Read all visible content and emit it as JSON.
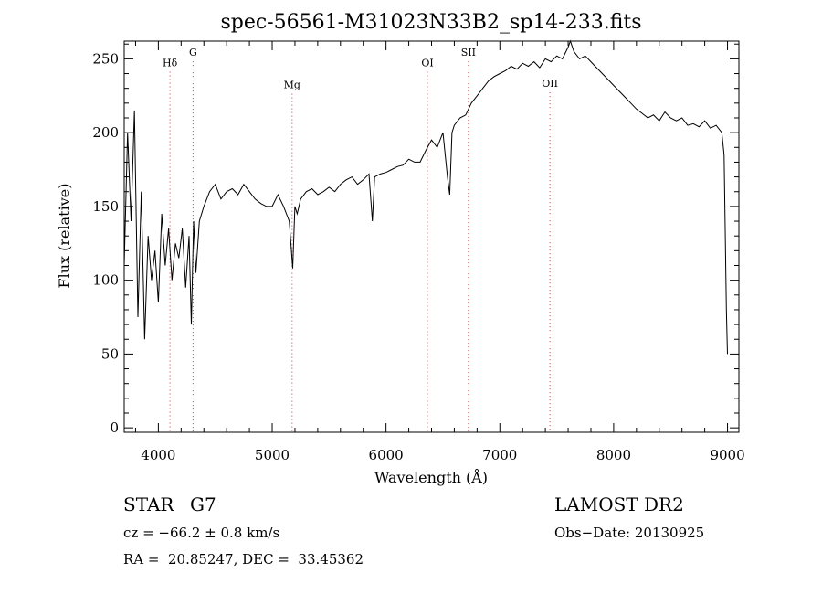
{
  "chart_data": {
    "type": "line",
    "title": "spec-56561-M31023N33B2_sp14-233.fits",
    "xlabel": "Wavelength (Å)",
    "ylabel": "Flux (relative)",
    "xlim": [
      3700,
      9100
    ],
    "ylim": [
      -3,
      262
    ],
    "x_ticks": [
      4000,
      5000,
      6000,
      7000,
      8000,
      9000
    ],
    "y_ticks": [
      0,
      50,
      100,
      150,
      200,
      250
    ],
    "grid": false,
    "line_color": "#000000",
    "marker_color": "#cc3333",
    "series": [
      {
        "x": [
          3700,
          3730,
          3760,
          3790,
          3820,
          3850,
          3880,
          3910,
          3940,
          3970,
          4000,
          4030,
          4060,
          4090,
          4120,
          4150,
          4180,
          4210,
          4240,
          4270,
          4290,
          4310,
          4330,
          4360,
          4400,
          4450,
          4500,
          4550,
          4600,
          4650,
          4700,
          4750,
          4800,
          4850,
          4900,
          4950,
          5000,
          5050,
          5100,
          5150,
          5180,
          5200,
          5220,
          5250,
          5300,
          5350,
          5400,
          5450,
          5500,
          5550,
          5600,
          5650,
          5700,
          5750,
          5800,
          5850,
          5880,
          5900,
          5950,
          6000,
          6050,
          6100,
          6150,
          6200,
          6250,
          6300,
          6350,
          6400,
          6450,
          6500,
          6540,
          6560,
          6580,
          6600,
          6650,
          6700,
          6750,
          6800,
          6850,
          6900,
          6950,
          7000,
          7050,
          7100,
          7150,
          7200,
          7250,
          7300,
          7350,
          7400,
          7450,
          7500,
          7550,
          7600,
          7620,
          7650,
          7700,
          7750,
          7800,
          7850,
          7900,
          7950,
          8000,
          8050,
          8100,
          8150,
          8200,
          8250,
          8300,
          8350,
          8400,
          8450,
          8500,
          8550,
          8600,
          8650,
          8700,
          8750,
          8800,
          8850,
          8900,
          8950,
          8970,
          8990,
          9000
        ],
        "y": [
          110,
          200,
          140,
          215,
          75,
          160,
          60,
          130,
          100,
          120,
          85,
          145,
          110,
          135,
          100,
          125,
          115,
          135,
          95,
          130,
          70,
          140,
          105,
          140,
          150,
          160,
          165,
          155,
          160,
          162,
          158,
          165,
          160,
          155,
          152,
          150,
          150,
          158,
          150,
          140,
          108,
          150,
          145,
          155,
          160,
          162,
          158,
          160,
          163,
          160,
          165,
          168,
          170,
          165,
          168,
          172,
          140,
          170,
          172,
          173,
          175,
          177,
          178,
          182,
          180,
          180,
          188,
          195,
          190,
          200,
          170,
          158,
          200,
          205,
          210,
          212,
          220,
          225,
          230,
          235,
          238,
          240,
          242,
          245,
          243,
          247,
          245,
          248,
          244,
          250,
          248,
          252,
          250,
          258,
          262,
          255,
          250,
          252,
          248,
          244,
          240,
          236,
          232,
          228,
          224,
          220,
          216,
          213,
          210,
          212,
          208,
          214,
          210,
          208,
          210,
          205,
          206,
          204,
          208,
          203,
          205,
          200,
          185,
          80,
          50
        ]
      }
    ],
    "spectral_lines": [
      {
        "label": "Hδ",
        "x": 4102,
        "label_y": 245
      },
      {
        "label": "G",
        "x": 4305,
        "label_y": 252
      },
      {
        "label": "Mg",
        "x": 5175,
        "label_y": 230
      },
      {
        "label": "OI",
        "x": 6364,
        "label_y": 245
      },
      {
        "label": "SII",
        "x": 6724,
        "label_y": 252
      },
      {
        "label": "OII",
        "x": 7440,
        "label_y": 231
      }
    ]
  },
  "info": {
    "object_class": "STAR",
    "subclass": "G7",
    "survey": "LAMOST DR2",
    "cz": "cz = −66.2 ± 0.8 km/s",
    "obs_date": "Obs−Date: 20130925",
    "coords": "RA =  20.85247, DEC =  33.45362"
  }
}
